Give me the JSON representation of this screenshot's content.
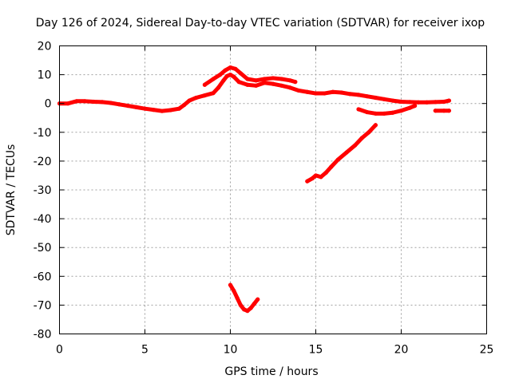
{
  "chart_data": {
    "type": "scatter",
    "title": "Day 126 of 2024, Sidereal Day-to-day VTEC variation (SDTVAR) for receiver ixop",
    "xlabel": "GPS time / hours",
    "ylabel": "SDTVAR / TECUs",
    "xlim": [
      0,
      25
    ],
    "ylim": [
      -80,
      20
    ],
    "xticks": [
      0,
      5,
      10,
      15,
      20,
      25
    ],
    "yticks": [
      -80,
      -70,
      -60,
      -50,
      -40,
      -30,
      -20,
      -10,
      0,
      10,
      20
    ],
    "grid": true,
    "color": "#ff0000",
    "series": [
      {
        "name": "SDTVAR segment 1",
        "points": [
          [
            0,
            0
          ],
          [
            0.5,
            0
          ],
          [
            1,
            0.8
          ],
          [
            1.5,
            0.8
          ],
          [
            2,
            0.6
          ],
          [
            2.5,
            0.5
          ],
          [
            3,
            0.2
          ],
          [
            3.5,
            -0.3
          ],
          [
            4,
            -0.8
          ],
          [
            4.5,
            -1.3
          ],
          [
            5,
            -1.8
          ],
          [
            5.5,
            -2.2
          ],
          [
            6,
            -2.6
          ],
          [
            6.5,
            -2.3
          ],
          [
            7,
            -1.8
          ],
          [
            7.3,
            -0.5
          ],
          [
            7.6,
            1
          ],
          [
            8,
            2
          ],
          [
            8.5,
            2.8
          ],
          [
            9,
            3.6
          ],
          [
            9.3,
            5.5
          ],
          [
            9.6,
            8
          ],
          [
            9.8,
            9.5
          ],
          [
            10,
            10
          ],
          [
            10.2,
            9.3
          ],
          [
            10.5,
            7.5
          ],
          [
            11,
            6.5
          ],
          [
            11.5,
            6.2
          ],
          [
            12,
            7.2
          ],
          [
            12.5,
            6.8
          ],
          [
            13,
            6.2
          ],
          [
            13.5,
            5.5
          ],
          [
            14,
            4.5
          ],
          [
            14.5,
            4
          ],
          [
            15,
            3.5
          ],
          [
            15.5,
            3.5
          ],
          [
            16,
            4
          ],
          [
            16.5,
            3.8
          ],
          [
            17,
            3.3
          ],
          [
            17.5,
            3
          ],
          [
            18,
            2.5
          ],
          [
            18.5,
            2
          ],
          [
            19,
            1.5
          ],
          [
            19.5,
            1
          ],
          [
            20,
            0.6
          ],
          [
            20.5,
            0.5
          ],
          [
            21,
            0.4
          ],
          [
            21.5,
            0.4
          ],
          [
            22,
            0.5
          ],
          [
            22.5,
            0.6
          ],
          [
            22.8,
            1
          ]
        ]
      },
      {
        "name": "SDTVAR segment 2",
        "points": [
          [
            8.5,
            6.5
          ],
          [
            9,
            8.5
          ],
          [
            9.4,
            10
          ],
          [
            9.7,
            11.5
          ],
          [
            10,
            12.5
          ],
          [
            10.3,
            12
          ],
          [
            10.6,
            10.5
          ],
          [
            11,
            8.5
          ],
          [
            11.5,
            8
          ],
          [
            12,
            8.5
          ],
          [
            12.5,
            8.8
          ],
          [
            13,
            8.5
          ],
          [
            13.5,
            8
          ],
          [
            13.8,
            7.5
          ]
        ]
      },
      {
        "name": "SDTVAR segment 3",
        "points": [
          [
            17.5,
            -2
          ],
          [
            18,
            -3
          ],
          [
            18.5,
            -3.5
          ],
          [
            19,
            -3.5
          ],
          [
            19.5,
            -3.2
          ],
          [
            20,
            -2.5
          ],
          [
            20.5,
            -1.5
          ],
          [
            20.8,
            -0.8
          ]
        ]
      },
      {
        "name": "SDTVAR segment 4",
        "points": [
          [
            22,
            -2.5
          ],
          [
            22.5,
            -2.5
          ],
          [
            22.8,
            -2.5
          ]
        ]
      },
      {
        "name": "SDTVAR segment 5",
        "points": [
          [
            14.5,
            -27
          ],
          [
            14.8,
            -26
          ],
          [
            15,
            -25
          ],
          [
            15.3,
            -25.5
          ],
          [
            15.6,
            -24
          ],
          [
            15.9,
            -22
          ],
          [
            16.3,
            -19.5
          ],
          [
            16.8,
            -17
          ],
          [
            17.3,
            -14.5
          ],
          [
            17.7,
            -12
          ],
          [
            18.1,
            -10
          ],
          [
            18.5,
            -7.5
          ]
        ]
      },
      {
        "name": "SDTVAR segment 6",
        "points": [
          [
            10,
            -63
          ],
          [
            10.2,
            -65
          ],
          [
            10.4,
            -67.5
          ],
          [
            10.6,
            -70
          ],
          [
            10.8,
            -71.5
          ],
          [
            11,
            -72
          ],
          [
            11.2,
            -71
          ],
          [
            11.4,
            -69.5
          ],
          [
            11.6,
            -68
          ]
        ]
      }
    ]
  }
}
